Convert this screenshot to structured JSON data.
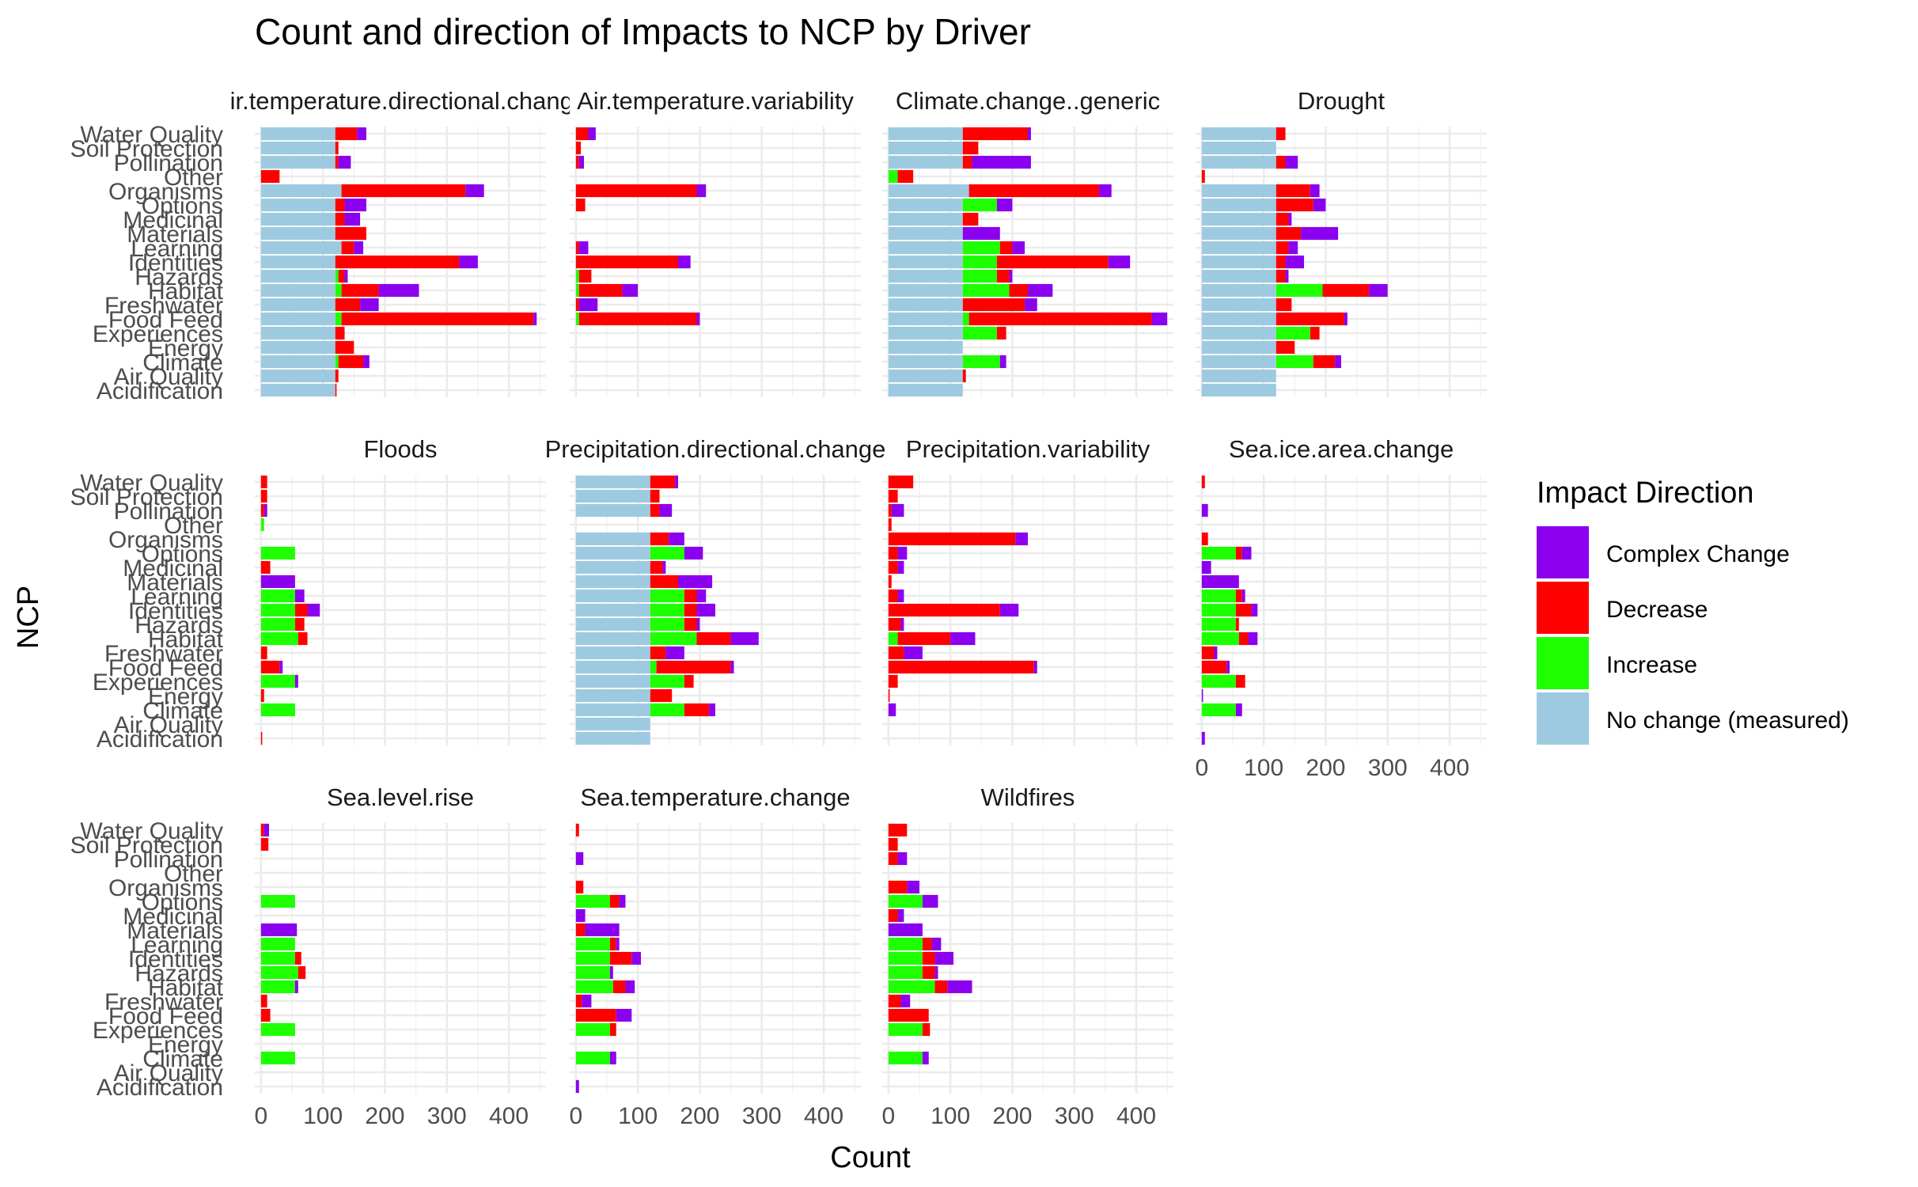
{
  "title": "Count and direction of Impacts to NCP by Driver",
  "ylabel": "NCP",
  "xlabel": "Count",
  "legend": {
    "title": "Impact Direction",
    "items": [
      {
        "label": "Complex Change",
        "color": "#8b00ee"
      },
      {
        "label": "Decrease",
        "color": "#ff0000"
      },
      {
        "label": "Increase",
        "color": "#1eff00"
      },
      {
        "label": "No change (measured)",
        "color": "#9ecae1"
      }
    ]
  },
  "chart_data": {
    "type": "bar",
    "orientation": "horizontal",
    "stacked": true,
    "stack_order": [
      "No change (measured)",
      "Increase",
      "Decrease",
      "Complex Change"
    ],
    "categories": [
      "Water Quality",
      "Soil Protection",
      "Pollination",
      "Other",
      "Organisms",
      "Options",
      "Medicinal",
      "Materials",
      "Learning",
      "Identities",
      "Hazards",
      "Habitat",
      "Freshwater",
      "Food Feed",
      "Experiences",
      "Energy",
      "Climate",
      "Air Quality",
      "Acidification"
    ],
    "xticks": [
      0,
      100,
      200,
      300,
      400
    ],
    "xlim": [
      -10,
      460
    ],
    "grid": true,
    "legend_position": "right",
    "panels": [
      {
        "title": "Air.temperature.directional.change",
        "nochange": [
          120,
          120,
          120,
          0,
          130,
          120,
          120,
          120,
          130,
          120,
          120,
          120,
          120,
          120,
          120,
          120,
          120,
          120,
          120
        ],
        "increase": [
          0,
          0,
          0,
          0,
          0,
          0,
          0,
          0,
          0,
          0,
          5,
          10,
          0,
          10,
          0,
          0,
          5,
          0,
          0
        ],
        "decrease": [
          35,
          5,
          5,
          30,
          200,
          15,
          15,
          50,
          20,
          200,
          10,
          60,
          40,
          310,
          15,
          30,
          40,
          5,
          2
        ],
        "complex": [
          15,
          0,
          20,
          0,
          30,
          35,
          25,
          0,
          15,
          30,
          5,
          65,
          30,
          5,
          0,
          0,
          10,
          0,
          0
        ]
      },
      {
        "title": "Air.temperature.variability",
        "nochange": [
          0,
          0,
          0,
          0,
          0,
          0,
          0,
          0,
          0,
          0,
          0,
          0,
          0,
          0,
          0,
          0,
          0,
          0,
          0
        ],
        "increase": [
          0,
          0,
          0,
          0,
          0,
          0,
          0,
          0,
          0,
          0,
          5,
          5,
          0,
          5,
          0,
          0,
          0,
          0,
          0
        ],
        "decrease": [
          20,
          8,
          5,
          0,
          195,
          15,
          0,
          0,
          5,
          165,
          20,
          70,
          5,
          190,
          0,
          0,
          0,
          0,
          0
        ],
        "complex": [
          12,
          0,
          8,
          0,
          15,
          0,
          0,
          0,
          15,
          20,
          0,
          25,
          30,
          5,
          0,
          0,
          0,
          0,
          0
        ]
      },
      {
        "title": "Climate.change..generic",
        "nochange": [
          120,
          120,
          120,
          0,
          130,
          120,
          120,
          120,
          120,
          120,
          120,
          120,
          120,
          120,
          120,
          120,
          120,
          120,
          120
        ],
        "increase": [
          0,
          0,
          0,
          15,
          0,
          55,
          0,
          0,
          60,
          55,
          55,
          75,
          0,
          10,
          55,
          0,
          60,
          0,
          0
        ],
        "decrease": [
          105,
          25,
          15,
          25,
          210,
          0,
          25,
          0,
          20,
          180,
          20,
          30,
          100,
          295,
          15,
          0,
          0,
          5,
          0
        ],
        "complex": [
          5,
          0,
          95,
          0,
          20,
          25,
          0,
          60,
          20,
          35,
          5,
          40,
          20,
          25,
          0,
          0,
          10,
          0,
          0
        ]
      },
      {
        "title": "Drought",
        "nochange": [
          120,
          120,
          120,
          0,
          120,
          120,
          120,
          120,
          120,
          120,
          120,
          120,
          120,
          120,
          120,
          120,
          120,
          120,
          120
        ],
        "increase": [
          0,
          0,
          0,
          0,
          0,
          0,
          0,
          0,
          0,
          0,
          0,
          75,
          0,
          0,
          55,
          0,
          60,
          0,
          0
        ],
        "decrease": [
          15,
          0,
          15,
          5,
          55,
          60,
          20,
          40,
          20,
          15,
          15,
          75,
          25,
          110,
          15,
          30,
          35,
          0,
          0
        ],
        "complex": [
          0,
          0,
          20,
          0,
          15,
          20,
          5,
          60,
          15,
          30,
          5,
          30,
          0,
          5,
          0,
          0,
          10,
          0,
          0
        ]
      },
      {
        "title": "Floods",
        "nochange": [
          0,
          0,
          0,
          0,
          0,
          0,
          0,
          0,
          0,
          0,
          0,
          0,
          0,
          0,
          0,
          0,
          0,
          0,
          0
        ],
        "increase": [
          0,
          0,
          0,
          5,
          0,
          55,
          0,
          0,
          55,
          55,
          55,
          60,
          0,
          0,
          55,
          0,
          55,
          0,
          0
        ],
        "decrease": [
          10,
          10,
          5,
          0,
          0,
          0,
          15,
          0,
          0,
          20,
          15,
          15,
          10,
          30,
          0,
          5,
          0,
          0,
          2
        ],
        "complex": [
          0,
          0,
          5,
          0,
          0,
          0,
          0,
          55,
          15,
          20,
          0,
          0,
          0,
          5,
          5,
          0,
          0,
          0,
          0
        ]
      },
      {
        "title": "Precipitation.directional.change",
        "nochange": [
          120,
          120,
          120,
          0,
          120,
          120,
          120,
          120,
          120,
          120,
          120,
          120,
          120,
          120,
          120,
          120,
          120,
          120,
          120
        ],
        "increase": [
          0,
          0,
          0,
          0,
          0,
          55,
          0,
          0,
          55,
          55,
          55,
          75,
          0,
          10,
          55,
          0,
          55,
          0,
          0
        ],
        "decrease": [
          40,
          15,
          15,
          0,
          30,
          0,
          20,
          45,
          20,
          20,
          20,
          55,
          25,
          120,
          15,
          35,
          40,
          0,
          0
        ],
        "complex": [
          5,
          0,
          20,
          0,
          25,
          30,
          5,
          55,
          15,
          30,
          5,
          45,
          30,
          5,
          0,
          0,
          10,
          0,
          0
        ]
      },
      {
        "title": "Precipitation.variability",
        "nochange": [
          0,
          0,
          0,
          0,
          0,
          0,
          0,
          0,
          0,
          0,
          0,
          0,
          0,
          0,
          0,
          0,
          0,
          0,
          0
        ],
        "increase": [
          0,
          0,
          0,
          0,
          0,
          0,
          0,
          0,
          0,
          0,
          0,
          15,
          0,
          0,
          0,
          0,
          0,
          0,
          0
        ],
        "decrease": [
          40,
          15,
          5,
          5,
          205,
          15,
          15,
          5,
          15,
          180,
          20,
          85,
          25,
          235,
          15,
          2,
          0,
          0,
          0
        ],
        "complex": [
          0,
          0,
          20,
          0,
          20,
          15,
          10,
          0,
          10,
          30,
          5,
          40,
          30,
          5,
          0,
          0,
          12,
          0,
          0
        ]
      },
      {
        "title": "Sea.ice.area.change",
        "nochange": [
          0,
          0,
          0,
          0,
          0,
          0,
          0,
          0,
          0,
          0,
          0,
          0,
          0,
          0,
          0,
          0,
          0,
          0,
          0
        ],
        "increase": [
          0,
          0,
          0,
          0,
          0,
          55,
          0,
          0,
          55,
          55,
          55,
          60,
          0,
          0,
          55,
          0,
          55,
          0,
          0
        ],
        "decrease": [
          5,
          0,
          0,
          0,
          10,
          10,
          0,
          0,
          10,
          25,
          5,
          15,
          20,
          40,
          15,
          0,
          0,
          0,
          0
        ],
        "complex": [
          0,
          0,
          10,
          0,
          0,
          15,
          15,
          60,
          5,
          10,
          0,
          15,
          5,
          5,
          0,
          2,
          10,
          0,
          5
        ]
      },
      {
        "title": "Sea.level.rise",
        "nochange": [
          0,
          0,
          0,
          0,
          0,
          0,
          0,
          0,
          0,
          0,
          0,
          0,
          0,
          0,
          0,
          0,
          0,
          0,
          0
        ],
        "increase": [
          0,
          0,
          0,
          0,
          0,
          55,
          0,
          0,
          55,
          55,
          60,
          55,
          0,
          0,
          55,
          0,
          55,
          0,
          0
        ],
        "decrease": [
          5,
          12,
          0,
          0,
          0,
          0,
          0,
          0,
          0,
          10,
          12,
          0,
          10,
          15,
          0,
          0,
          0,
          0,
          0
        ],
        "complex": [
          8,
          0,
          0,
          0,
          0,
          0,
          0,
          58,
          0,
          0,
          0,
          5,
          0,
          0,
          0,
          0,
          0,
          0,
          0
        ]
      },
      {
        "title": "Sea.temperature.change",
        "nochange": [
          0,
          0,
          0,
          0,
          0,
          0,
          0,
          0,
          0,
          0,
          0,
          0,
          0,
          0,
          0,
          0,
          0,
          0,
          0
        ],
        "increase": [
          0,
          0,
          0,
          0,
          0,
          55,
          0,
          0,
          55,
          55,
          55,
          60,
          0,
          0,
          55,
          0,
          55,
          0,
          0
        ],
        "decrease": [
          5,
          0,
          0,
          0,
          12,
          15,
          0,
          15,
          10,
          35,
          0,
          20,
          10,
          65,
          10,
          0,
          0,
          0,
          0
        ],
        "complex": [
          0,
          0,
          12,
          0,
          0,
          10,
          15,
          55,
          5,
          15,
          5,
          15,
          15,
          25,
          0,
          0,
          10,
          0,
          5
        ]
      },
      {
        "title": "Wildfires",
        "nochange": [
          0,
          0,
          0,
          0,
          0,
          0,
          0,
          0,
          0,
          0,
          0,
          0,
          0,
          0,
          0,
          0,
          0,
          0,
          0
        ],
        "increase": [
          0,
          0,
          0,
          0,
          0,
          55,
          0,
          0,
          55,
          55,
          55,
          75,
          0,
          0,
          55,
          0,
          55,
          0,
          0
        ],
        "decrease": [
          30,
          15,
          15,
          0,
          30,
          0,
          15,
          0,
          15,
          20,
          20,
          20,
          20,
          65,
          12,
          0,
          0,
          0,
          0
        ],
        "complex": [
          0,
          0,
          15,
          0,
          20,
          25,
          10,
          55,
          15,
          30,
          5,
          40,
          15,
          0,
          0,
          0,
          10,
          0,
          0
        ]
      }
    ]
  }
}
